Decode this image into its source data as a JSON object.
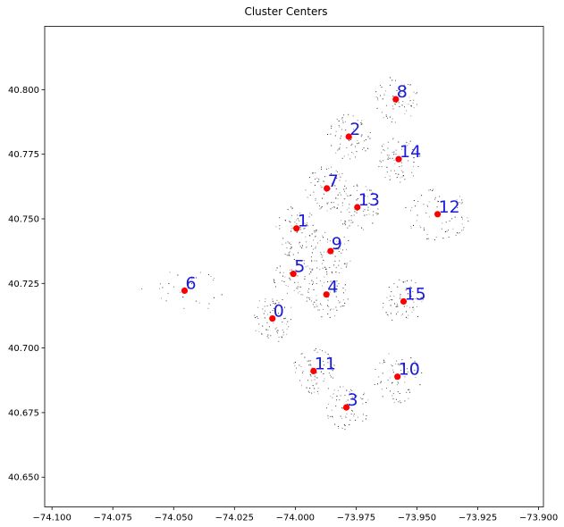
{
  "chart_data": {
    "type": "scatter",
    "title": "Cluster Centers",
    "xlabel": "",
    "ylabel": "",
    "xlim": [
      -74.103,
      -73.898
    ],
    "ylim": [
      40.6385,
      40.8245
    ],
    "xticks": [
      -74.1,
      -74.075,
      -74.05,
      -74.025,
      -74.0,
      -73.975,
      -73.95,
      -73.925,
      -73.9
    ],
    "xtick_labels": [
      "−74.100",
      "−74.075",
      "−74.050",
      "−74.025",
      "−74.000",
      "−73.975",
      "−73.950",
      "−73.925",
      "−73.900"
    ],
    "yticks": [
      40.65,
      40.675,
      40.7,
      40.725,
      40.75,
      40.775,
      40.8
    ],
    "ytick_labels": [
      "40.650",
      "40.675",
      "40.700",
      "40.725",
      "40.750",
      "40.775",
      "40.800"
    ],
    "grid": false,
    "colors": {
      "center": "#ff0000",
      "label": "#1a1adc",
      "points": "#000000"
    },
    "centers": [
      {
        "label": "0",
        "x": -74.0094,
        "y": 40.7114
      },
      {
        "label": "1",
        "x": -73.9995,
        "y": 40.7463
      },
      {
        "label": "2",
        "x": -73.978,
        "y": 40.7818
      },
      {
        "label": "3",
        "x": -73.979,
        "y": 40.677
      },
      {
        "label": "4",
        "x": -73.9872,
        "y": 40.7207
      },
      {
        "label": "5",
        "x": -74.0008,
        "y": 40.7287
      },
      {
        "label": "6",
        "x": -74.0455,
        "y": 40.7222
      },
      {
        "label": "7",
        "x": -73.987,
        "y": 40.7618
      },
      {
        "label": "8",
        "x": -73.9587,
        "y": 40.7963
      },
      {
        "label": "9",
        "x": -73.9855,
        "y": 40.7375
      },
      {
        "label": "10",
        "x": -73.958,
        "y": 40.6889
      },
      {
        "label": "11",
        "x": -73.9925,
        "y": 40.6911
      },
      {
        "label": "12",
        "x": -73.9415,
        "y": 40.7518
      },
      {
        "label": "13",
        "x": -73.9745,
        "y": 40.7545
      },
      {
        "label": "14",
        "x": -73.9575,
        "y": 40.7731
      },
      {
        "label": "15",
        "x": -73.9555,
        "y": 40.718
      }
    ]
  }
}
